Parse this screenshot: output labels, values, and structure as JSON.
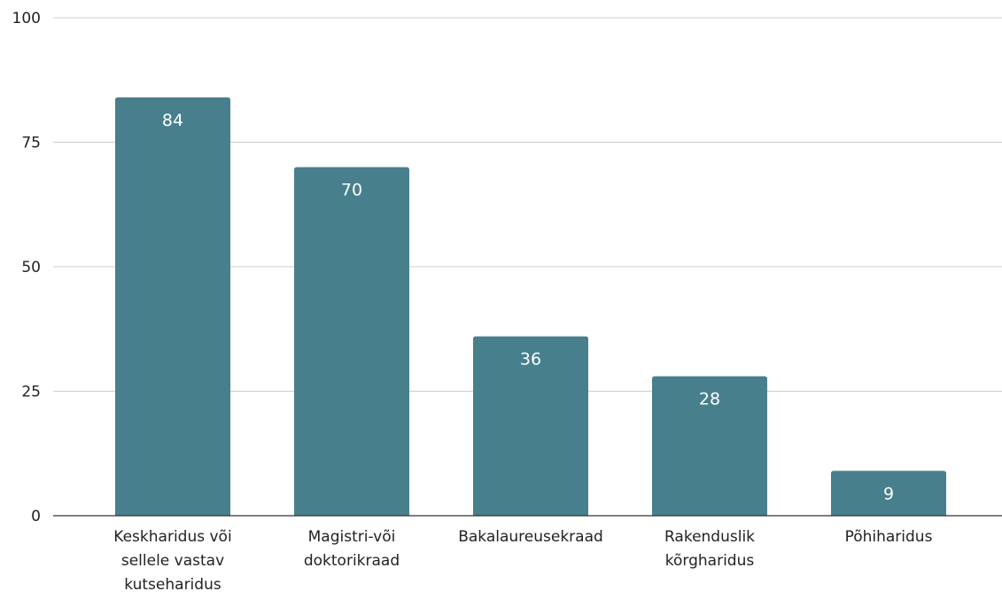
{
  "chart_data": {
    "type": "bar",
    "title": "",
    "xlabel": "",
    "ylabel": "",
    "categories": [
      [
        "Keskharidus või",
        "sellele vastav",
        "kutseharidus"
      ],
      [
        "Magistri-või",
        "doktorikraad"
      ],
      [
        "Bakalaureusekraad"
      ],
      [
        "Rakenduslik",
        "kõrgharidus"
      ],
      [
        "Põhiharidus"
      ]
    ],
    "values": [
      84,
      70,
      36,
      28,
      9
    ],
    "data_labels": [
      "84",
      "70",
      "36",
      "28",
      "9"
    ],
    "ylim": [
      0,
      100
    ],
    "yticks": [
      0,
      25,
      50,
      75,
      100
    ],
    "ytick_labels": [
      "0",
      "25",
      "50",
      "75",
      "100"
    ],
    "grid": true,
    "legend": "none",
    "bar_color": "#487f8c"
  }
}
